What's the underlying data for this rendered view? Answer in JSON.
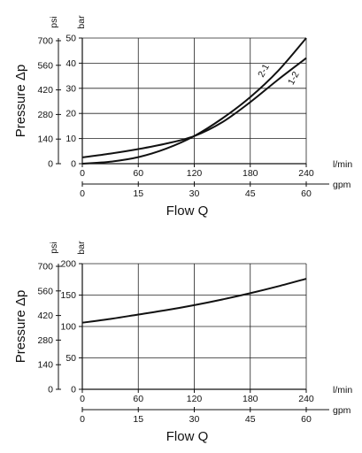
{
  "chart_data": [
    {
      "type": "line",
      "ylabel": "Pressure Δp",
      "xlabel": "Flow Q",
      "x_unit_primary": "l/min",
      "x_unit_secondary": "gpm",
      "y_unit_bar": "bar",
      "y_unit_psi": "psi",
      "xlim": [
        0,
        240
      ],
      "ylim_bar": [
        0,
        50
      ],
      "grid": true,
      "x_ticks_lpm": [
        "0",
        "60",
        "120",
        "180",
        "240"
      ],
      "x_ticks_lpm_values": [
        0,
        60,
        120,
        180,
        240
      ],
      "x_ticks_gpm": [
        "0",
        "15",
        "30",
        "45",
        "60"
      ],
      "x_ticks_gpm_values": [
        0,
        15,
        30,
        45,
        60
      ],
      "y_ticks_bar": [
        "0",
        "10",
        "20",
        "30",
        "40",
        "50"
      ],
      "y_ticks_bar_values": [
        0,
        10,
        20,
        30,
        40,
        50
      ],
      "y_ticks_psi": [
        "0",
        "140",
        "280",
        "420",
        "560",
        "700"
      ],
      "y_ticks_psi_values": [
        0,
        140,
        280,
        420,
        560,
        700
      ],
      "series": [
        {
          "name": "2-1",
          "label_at": [
            197,
            36.5
          ],
          "x": [
            0,
            30,
            60,
            90,
            120,
            150,
            180,
            210,
            240
          ],
          "y": [
            0,
            0.8,
            2.6,
            6.0,
            11.0,
            18.0,
            26.5,
            37.0,
            50.0
          ]
        },
        {
          "name": "1-2",
          "label_at": [
            229,
            33.5
          ],
          "x": [
            0,
            30,
            60,
            90,
            120,
            150,
            180,
            210,
            240
          ],
          "y": [
            2.5,
            4.0,
            5.8,
            8.0,
            11.0,
            16.5,
            24.5,
            33.5,
            42.0
          ]
        }
      ]
    },
    {
      "type": "line",
      "ylabel": "Pressure Δp",
      "xlabel": "Flow Q",
      "x_unit_primary": "l/min",
      "x_unit_secondary": "gpm",
      "y_unit_bar": "bar",
      "y_unit_psi": "psi",
      "xlim": [
        0,
        240
      ],
      "ylim_bar": [
        0,
        200
      ],
      "grid": true,
      "x_ticks_lpm": [
        "0",
        "60",
        "120",
        "180",
        "240"
      ],
      "x_ticks_lpm_values": [
        0,
        60,
        120,
        180,
        240
      ],
      "x_ticks_gpm": [
        "0",
        "15",
        "30",
        "45",
        "60"
      ],
      "x_ticks_gpm_values": [
        0,
        15,
        30,
        45,
        60
      ],
      "y_ticks_bar": [
        "0",
        "50",
        "100",
        "150",
        "200"
      ],
      "y_ticks_bar_values": [
        0,
        50,
        100,
        150,
        200
      ],
      "y_ticks_psi": [
        "0",
        "140",
        "280",
        "420",
        "560",
        "700"
      ],
      "y_ticks_psi_values": [
        0,
        140,
        280,
        420,
        560,
        700
      ],
      "series": [
        {
          "x": [
            0,
            30,
            60,
            90,
            120,
            150,
            180,
            210,
            240
          ],
          "y": [
            106,
            112,
            119,
            126,
            134,
            143,
            153,
            164,
            176
          ]
        }
      ]
    }
  ]
}
